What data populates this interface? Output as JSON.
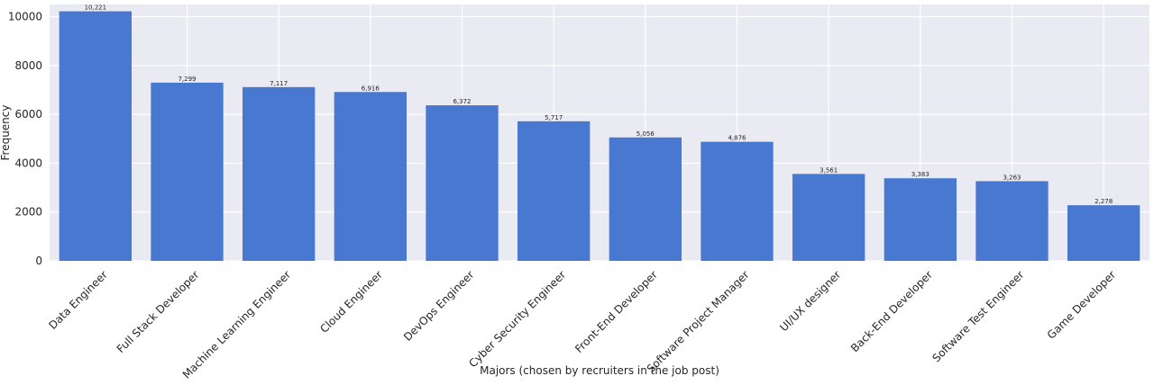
{
  "chart_data": {
    "type": "bar",
    "title": "",
    "xlabel": "Majors (chosen by recruiters in the job post)",
    "ylabel": "Frequency",
    "ylim": [
      0,
      10500
    ],
    "yticks": [
      0,
      2000,
      4000,
      6000,
      8000,
      10000
    ],
    "grid": true,
    "legend": "none",
    "categories": [
      "Data Engineer",
      "Full Stack Developer",
      "Machine Learning Engineer",
      "Cloud Engineer",
      "DevOps Engineer",
      "Cyber Security Engineer",
      "Front-End Developer",
      "Software Project Manager",
      "UI/UX designer",
      "Back-End Developer",
      "Software Test Engineer",
      "Game Developer"
    ],
    "values": [
      10221,
      7299,
      7117,
      6916,
      6372,
      5717,
      5056,
      4876,
      3561,
      3383,
      3263,
      2278
    ],
    "value_labels": [
      "10,221",
      "7,299",
      "7,117",
      "6,916",
      "6,372",
      "5,717",
      "5,056",
      "4,876",
      "3,561",
      "3,383",
      "3,263",
      "2,278"
    ],
    "colors": {
      "bar": "#4878cf",
      "plot_background": "#eaeaf2",
      "grid": "#ffffff",
      "text": "#262626"
    }
  }
}
